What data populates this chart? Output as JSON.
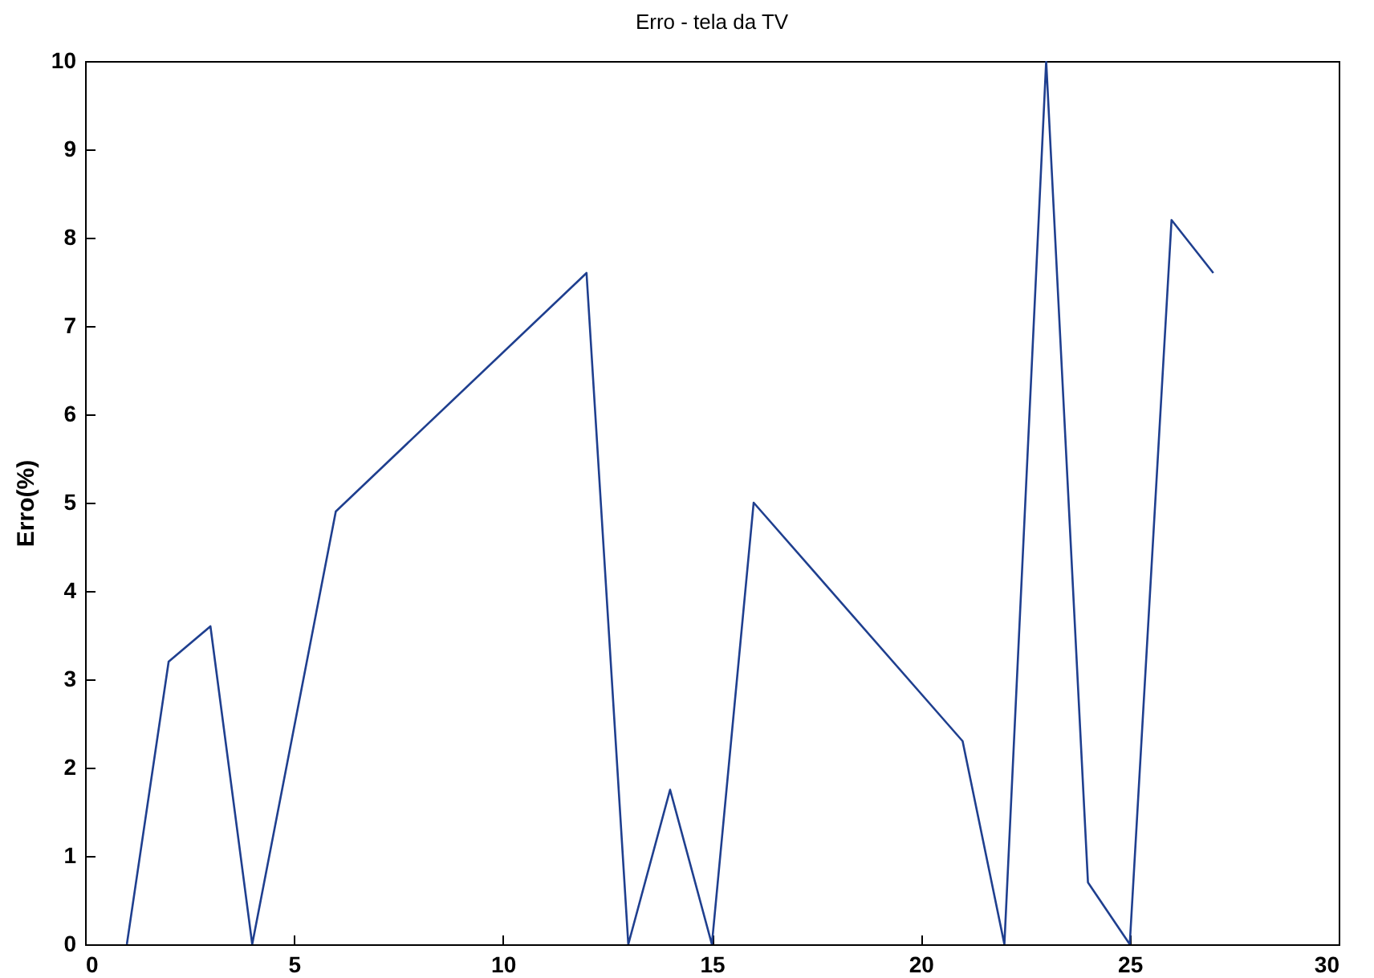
{
  "chart_data": {
    "type": "line",
    "title": "Erro - tela da TV",
    "ylabel": "Erro(%)",
    "x": [
      1,
      2,
      3,
      4,
      6,
      12,
      13,
      14,
      15,
      16,
      21,
      22,
      23,
      24,
      25,
      26,
      27
    ],
    "series": [
      {
        "color": "#1f3f8f",
        "values": [
          0,
          3.2,
          3.6,
          0,
          4.9,
          7.6,
          0,
          1.75,
          0,
          5.0,
          2.3,
          0,
          10,
          0.7,
          0,
          8.2,
          7.6
        ]
      }
    ],
    "xlim": [
      0,
      30
    ],
    "xticks": [
      0,
      5,
      10,
      15,
      20,
      25,
      30
    ],
    "ylim": [
      0,
      10
    ],
    "yticks": [
      0,
      1,
      2,
      3,
      4,
      5,
      6,
      7,
      8,
      9,
      10
    ],
    "grid": false,
    "legend": false,
    "marker": "none",
    "line_style": "solid"
  }
}
